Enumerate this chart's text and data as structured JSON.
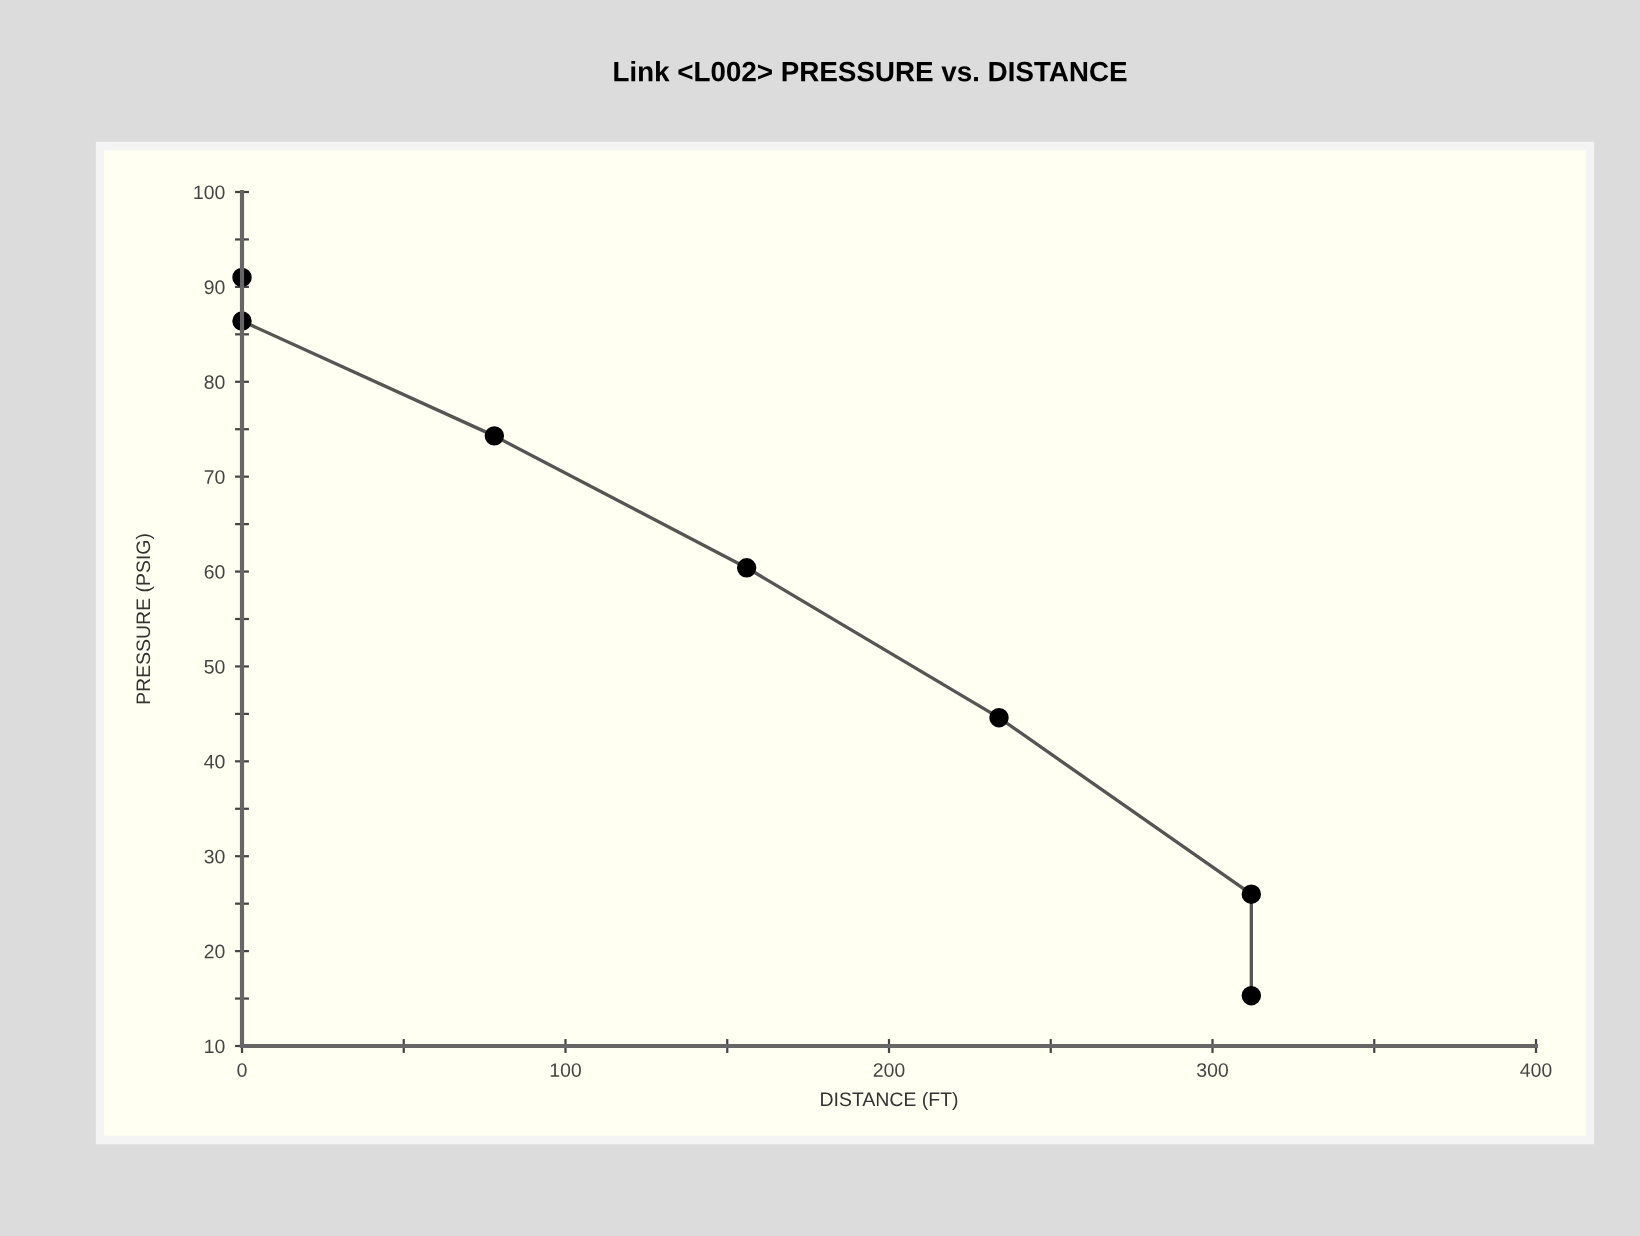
{
  "chart_data": {
    "type": "line",
    "title": "Link <L002> PRESSURE vs. DISTANCE",
    "xlabel": "DISTANCE (FT)",
    "ylabel": "PRESSURE (PSIG)",
    "x": [
      0,
      0,
      78,
      156,
      234,
      312,
      312
    ],
    "series": [
      {
        "color": "#555555",
        "values": [
          91,
          86.4,
          74.3,
          60.4,
          44.6,
          26,
          15.3
        ]
      }
    ],
    "marker": "circle",
    "line_style": "solid",
    "grid": false,
    "legend": false,
    "xlim": [
      0,
      400
    ],
    "ylim": [
      10,
      100
    ],
    "xticks": [
      0,
      {
        "value": 50,
        "label": null
      },
      100,
      {
        "value": 150,
        "label": null
      },
      200,
      {
        "value": 250,
        "label": null
      },
      300,
      {
        "value": 350,
        "label": null
      },
      400
    ],
    "yticks": [
      10,
      {
        "value": 15,
        "label": null
      },
      20,
      {
        "value": 25,
        "label": null
      },
      30,
      {
        "value": 35,
        "label": null
      },
      40,
      {
        "value": 45,
        "label": null
      },
      50,
      {
        "value": 55,
        "label": null
      },
      60,
      {
        "value": 65,
        "label": null
      },
      70,
      {
        "value": 75,
        "label": null
      },
      80,
      {
        "value": 85,
        "label": null
      },
      90,
      {
        "value": 95,
        "label": null
      },
      100
    ]
  }
}
